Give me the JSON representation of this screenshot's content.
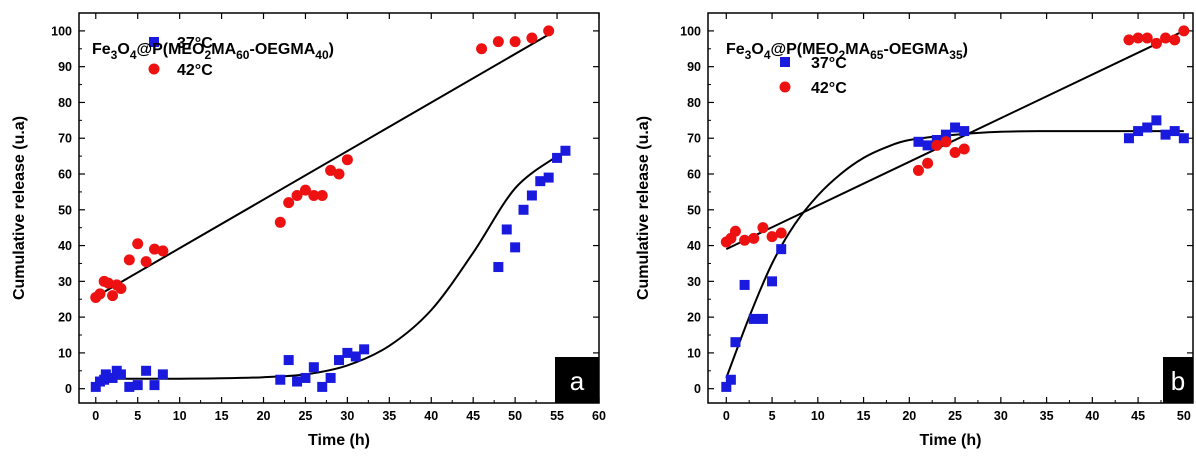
{
  "chart_data": [
    {
      "type": "scatter",
      "panel_label": "a",
      "title_parts": [
        {
          "t": "Fe",
          "s": false
        },
        {
          "t": "3",
          "s": true
        },
        {
          "t": "O",
          "s": false
        },
        {
          "t": "4",
          "s": true
        },
        {
          "t": "@P(MEO",
          "s": false
        },
        {
          "t": "2",
          "s": true
        },
        {
          "t": "MA",
          "s": false
        },
        {
          "t": "60",
          "s": true
        },
        {
          "t": "-OEGMA",
          "s": false
        },
        {
          "t": "40",
          "s": true
        },
        {
          "t": ")",
          "s": false
        }
      ],
      "xlabel": "Time (h)",
      "ylabel": "Cumulative release (u.a)",
      "xlim": [
        -2,
        60
      ],
      "ylim": [
        -4,
        105
      ],
      "xticks": [
        0,
        5,
        10,
        15,
        20,
        25,
        30,
        35,
        40,
        45,
        50,
        55,
        60
      ],
      "yticks": [
        0,
        10,
        20,
        30,
        40,
        50,
        60,
        70,
        80,
        90,
        100
      ],
      "series": [
        {
          "name": "37°C",
          "marker": "square",
          "color": "#1a1adf",
          "points": [
            [
              0,
              0.5
            ],
            [
              0.5,
              2
            ],
            [
              1,
              2.5
            ],
            [
              1.2,
              4
            ],
            [
              2,
              3
            ],
            [
              2.5,
              5
            ],
            [
              3,
              4
            ],
            [
              4,
              0.5
            ],
            [
              5,
              1
            ],
            [
              6,
              5
            ],
            [
              7,
              1
            ],
            [
              8,
              4
            ],
            [
              22,
              2.5
            ],
            [
              23,
              8
            ],
            [
              24,
              2
            ],
            [
              25,
              3
            ],
            [
              26,
              6
            ],
            [
              27,
              0.5
            ],
            [
              28,
              3
            ],
            [
              29,
              8
            ],
            [
              30,
              10
            ],
            [
              31,
              9
            ],
            [
              32,
              11
            ],
            [
              48,
              34
            ],
            [
              49,
              44.5
            ],
            [
              50,
              39.5
            ],
            [
              51,
              50
            ],
            [
              52,
              54
            ],
            [
              53,
              58
            ],
            [
              54,
              59
            ],
            [
              55,
              64.5
            ],
            [
              56,
              66.5
            ]
          ],
          "fit": [
            [
              0,
              2.8
            ],
            [
              5,
              2.8
            ],
            [
              10,
              2.8
            ],
            [
              15,
              2.9
            ],
            [
              20,
              3.2
            ],
            [
              25,
              4
            ],
            [
              30,
              6.5
            ],
            [
              35,
              12
            ],
            [
              40,
              22
            ],
            [
              45,
              38
            ],
            [
              50,
              56
            ],
            [
              55,
              65
            ]
          ]
        },
        {
          "name": "42°C",
          "marker": "circle",
          "color": "#ee1111",
          "points": [
            [
              0,
              25.5
            ],
            [
              0.5,
              26.5
            ],
            [
              1,
              30
            ],
            [
              1.5,
              29.5
            ],
            [
              2,
              26
            ],
            [
              2.5,
              29
            ],
            [
              3,
              28
            ],
            [
              4,
              36
            ],
            [
              5,
              40.5
            ],
            [
              6,
              35.5
            ],
            [
              7,
              39
            ],
            [
              8,
              38.5
            ],
            [
              22,
              46.5
            ],
            [
              23,
              52
            ],
            [
              24,
              54
            ],
            [
              25,
              55.5
            ],
            [
              26,
              54
            ],
            [
              27,
              54
            ],
            [
              28,
              61
            ],
            [
              29,
              60
            ],
            [
              30,
              64
            ],
            [
              46,
              95
            ],
            [
              48,
              97
            ],
            [
              50,
              97
            ],
            [
              52,
              98
            ],
            [
              54,
              100
            ]
          ],
          "fit": [
            [
              0,
              25.7
            ],
            [
              54,
              99
            ]
          ]
        }
      ]
    },
    {
      "type": "scatter",
      "panel_label": "b",
      "title_parts": [
        {
          "t": "Fe",
          "s": false
        },
        {
          "t": "3",
          "s": true
        },
        {
          "t": "O",
          "s": false
        },
        {
          "t": "4",
          "s": true
        },
        {
          "t": "@P(MEO",
          "s": false
        },
        {
          "t": "2",
          "s": true
        },
        {
          "t": "MA",
          "s": false
        },
        {
          "t": "65",
          "s": true
        },
        {
          "t": "-OEGMA",
          "s": false
        },
        {
          "t": "35",
          "s": true
        },
        {
          "t": ")",
          "s": false
        }
      ],
      "xlabel": "Time (h)",
      "ylabel": "Cumulative release (u.a)",
      "xlim": [
        -2,
        51
      ],
      "ylim": [
        -4,
        105
      ],
      "xticks": [
        0,
        5,
        10,
        15,
        20,
        25,
        30,
        35,
        40,
        45,
        50
      ],
      "yticks": [
        0,
        10,
        20,
        30,
        40,
        50,
        60,
        70,
        80,
        90,
        100
      ],
      "series": [
        {
          "name": "37°C",
          "marker": "square",
          "color": "#1a1adf",
          "points": [
            [
              0,
              0.5
            ],
            [
              0.5,
              2.5
            ],
            [
              1,
              13
            ],
            [
              2,
              29
            ],
            [
              3,
              19.5
            ],
            [
              4,
              19.5
            ],
            [
              5,
              30
            ],
            [
              6,
              39
            ],
            [
              21,
              69
            ],
            [
              22,
              68
            ],
            [
              23,
              69.5
            ],
            [
              24,
              71
            ],
            [
              25,
              73
            ],
            [
              26,
              72
            ],
            [
              44,
              70
            ],
            [
              45,
              72
            ],
            [
              46,
              73
            ],
            [
              47,
              75
            ],
            [
              48,
              71
            ],
            [
              49,
              72
            ],
            [
              50,
              70
            ]
          ],
          "fit": [
            [
              0,
              3
            ],
            [
              2.5,
              20
            ],
            [
              5,
              35
            ],
            [
              7.5,
              46
            ],
            [
              10,
              54
            ],
            [
              12.5,
              60
            ],
            [
              15,
              64.5
            ],
            [
              17.5,
              67.5
            ],
            [
              20,
              69.5
            ],
            [
              25,
              71
            ],
            [
              30,
              71.8
            ],
            [
              35,
              72
            ],
            [
              40,
              72
            ],
            [
              45,
              72
            ],
            [
              50,
              72
            ]
          ]
        },
        {
          "name": "42°C",
          "marker": "circle",
          "color": "#ee1111",
          "points": [
            [
              0,
              41
            ],
            [
              0.5,
              42
            ],
            [
              1,
              44
            ],
            [
              2,
              41.5
            ],
            [
              3,
              42
            ],
            [
              4,
              45
            ],
            [
              5,
              42.5
            ],
            [
              6,
              43.5
            ],
            [
              21,
              61
            ],
            [
              22,
              63
            ],
            [
              23,
              68
            ],
            [
              24,
              69
            ],
            [
              25,
              66
            ],
            [
              26,
              67
            ],
            [
              44,
              97.5
            ],
            [
              45,
              98
            ],
            [
              46,
              98
            ],
            [
              47,
              96.5
            ],
            [
              48,
              98
            ],
            [
              49,
              97.5
            ],
            [
              50,
              100
            ]
          ],
          "fit": [
            [
              0,
              39
            ],
            [
              50,
              100
            ]
          ]
        }
      ]
    }
  ]
}
